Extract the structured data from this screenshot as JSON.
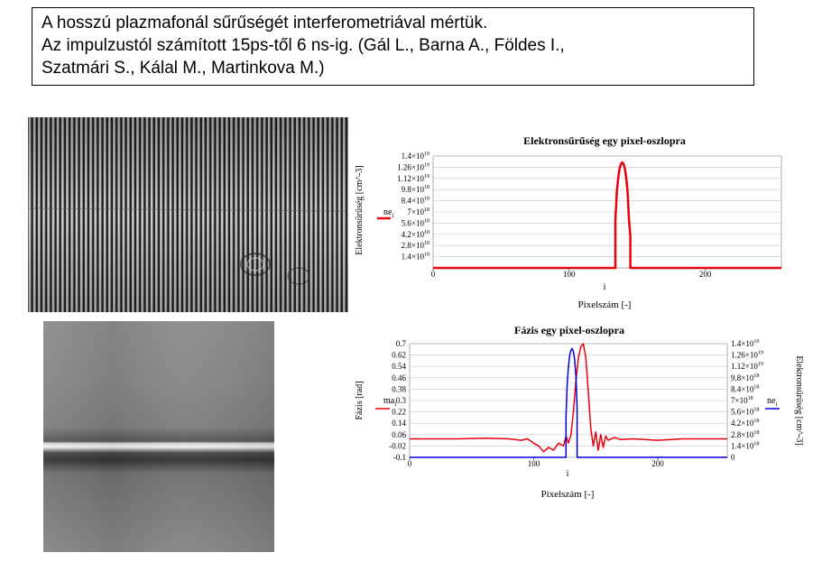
{
  "caption": {
    "lines": [
      "A hosszú plazmafonál sűrűségét interferometriával mértük.",
      "Az impulzustól számított 15ps-től 6 ns-ig. (Gál L., Barna A., Földes I.,",
      "Szatmári S., Kálal M., Martinkova M.)"
    ]
  },
  "images": {
    "interferogram": "interferogram-image",
    "phase_map": "phase-map-image"
  },
  "colors": {
    "red": "#e8000a",
    "blue": "#0000d8",
    "grid": "#c8c8c8"
  },
  "chart_data": [
    {
      "type": "line",
      "title": "Elektronsűrűség egy pixel-oszlopra",
      "xlabel": "Pixelszám [-]",
      "xvar": "i",
      "ylabel": "Elektronsűrűség [cm^-3]",
      "legend": {
        "symbol": "ne",
        "subscript": "i",
        "placement": "left"
      },
      "xlim": [
        0,
        256
      ],
      "ylim": [
        0,
        1.4e+19
      ],
      "x_ticks": [
        "0",
        "100",
        "200"
      ],
      "x_tick_values": [
        0,
        100,
        200
      ],
      "y_ticks": [
        {
          "v": 1.4e+18,
          "m": "1.4×10",
          "e": "18"
        },
        {
          "v": 2.8e+18,
          "m": "2.8×10",
          "e": "18"
        },
        {
          "v": 4.2e+18,
          "m": "4.2×10",
          "e": "18"
        },
        {
          "v": 5.6e+18,
          "m": "5.6×10",
          "e": "18"
        },
        {
          "v": 7e+18,
          "m": "7×10",
          "e": "18"
        },
        {
          "v": 8.4e+18,
          "m": "8.4×10",
          "e": "18"
        },
        {
          "v": 9.8e+18,
          "m": "9.8×10",
          "e": "18"
        },
        {
          "v": 1.12e+19,
          "m": "1.12×10",
          "e": "19"
        },
        {
          "v": 1.26e+19,
          "m": "1.26×10",
          "e": "19"
        },
        {
          "v": 1.4e+19,
          "m": "1.4×10",
          "e": "19"
        }
      ],
      "series": [
        {
          "name": "ne",
          "color": "#e8000a",
          "x": [
            0,
            134,
            134,
            135,
            136,
            137,
            138,
            139,
            140,
            141,
            142,
            143,
            144,
            145,
            145,
            256
          ],
          "y": [
            0,
            0,
            6e+18,
            9.5e+18,
            1.12e+19,
            1.24e+19,
            1.3e+19,
            1.32e+19,
            1.3e+19,
            1.24e+19,
            1.12e+19,
            9.5e+18,
            6e+18,
            4e+18,
            0,
            0
          ]
        }
      ]
    },
    {
      "type": "line",
      "title": "Fázis egy pixel-oszlopra",
      "xlabel": "Pixelszám [-]",
      "xvar": "i",
      "ylabel": "Fázis [rad]",
      "y2label": "Elektronsűrűség [cm^-3]",
      "legend_left": {
        "symbol": "ma",
        "subscript": "i"
      },
      "legend_right": {
        "symbol": "ne",
        "subscript": "i"
      },
      "xlim": [
        0,
        256
      ],
      "ylim": [
        -0.1,
        0.7
      ],
      "y2lim": [
        0,
        1.4e+19
      ],
      "x_ticks": [
        "0",
        "100",
        "200"
      ],
      "x_tick_values": [
        0,
        100,
        200
      ],
      "y_ticks": [
        "-0.1",
        "-0.02",
        "0.06",
        "0.14",
        "0.22",
        "0.3",
        "0.38",
        "0.46",
        "0.54",
        "0.62",
        "0.7"
      ],
      "y_tick_values": [
        -0.1,
        -0.02,
        0.06,
        0.14,
        0.22,
        0.3,
        0.38,
        0.46,
        0.54,
        0.62,
        0.7
      ],
      "y2_ticks": [
        {
          "v": 0,
          "m": "0",
          "e": ""
        },
        {
          "v": 1.4e+18,
          "m": "1.4×10",
          "e": "18"
        },
        {
          "v": 2.8e+18,
          "m": "2.8×10",
          "e": "18"
        },
        {
          "v": 4.2e+18,
          "m": "4.2×10",
          "e": "18"
        },
        {
          "v": 5.6e+18,
          "m": "5.6×10",
          "e": "18"
        },
        {
          "v": 7e+18,
          "m": "7×10",
          "e": "18"
        },
        {
          "v": 8.4e+18,
          "m": "8.4×10",
          "e": "18"
        },
        {
          "v": 9.8e+18,
          "m": "9.8×10",
          "e": "18"
        },
        {
          "v": 1.12e+19,
          "m": "1.12×10",
          "e": "19"
        },
        {
          "v": 1.26e+19,
          "m": "1.26×10",
          "e": "19"
        },
        {
          "v": 1.4e+19,
          "m": "1.4×10",
          "e": "19"
        }
      ],
      "series": [
        {
          "name": "ma",
          "axis": "left",
          "color": "#e8000a",
          "x": [
            0,
            20,
            40,
            60,
            80,
            90,
            95,
            100,
            104,
            108,
            112,
            116,
            120,
            124,
            126,
            128,
            130,
            132,
            134,
            136,
            138,
            140,
            142,
            144,
            146,
            148,
            150,
            152,
            154,
            156,
            158,
            160,
            165,
            170,
            180,
            200,
            220,
            240,
            256
          ],
          "y": [
            0.03,
            0.03,
            0.03,
            0.035,
            0.03,
            0.02,
            0.03,
            0.0,
            -0.02,
            -0.06,
            -0.03,
            -0.05,
            0.0,
            -0.02,
            0.05,
            0.0,
            0.06,
            0.22,
            0.44,
            0.6,
            0.68,
            0.7,
            0.6,
            0.36,
            0.1,
            -0.02,
            0.08,
            -0.05,
            0.06,
            -0.03,
            0.05,
            0.02,
            0.04,
            0.025,
            0.03,
            0.02,
            0.03,
            0.03,
            0.03
          ]
        },
        {
          "name": "ne",
          "axis": "right",
          "color": "#0000d8",
          "x": [
            0,
            126,
            126,
            127,
            128,
            129,
            130,
            131,
            132,
            133,
            134,
            135,
            135,
            256
          ],
          "y": [
            0,
            0,
            5e+18,
            9e+18,
            1.12e+19,
            1.26e+19,
            1.32e+19,
            1.34e+19,
            1.3e+19,
            1.2e+19,
            1e+19,
            6e+18,
            0,
            0
          ]
        }
      ]
    }
  ]
}
